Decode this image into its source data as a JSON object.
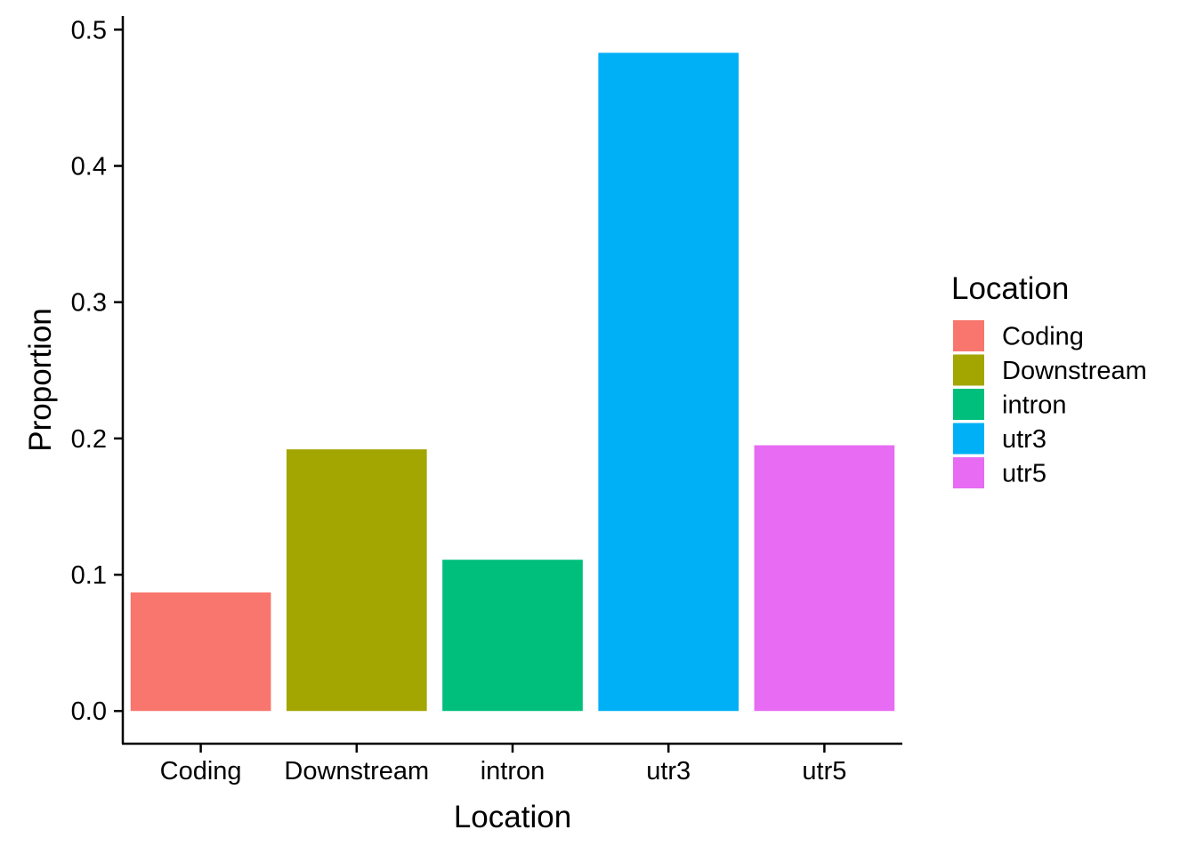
{
  "chart_data": {
    "type": "bar",
    "title": "",
    "xlabel": "Location",
    "ylabel": "Proportion",
    "categories": [
      "Coding",
      "Downstream",
      "intron",
      "utr3",
      "utr5"
    ],
    "values": [
      0.087,
      0.192,
      0.111,
      0.483,
      0.195
    ],
    "colors": [
      "#F8766D",
      "#A3A500",
      "#00BF7D",
      "#00B0F6",
      "#E76BF3"
    ],
    "ylim": [
      -0.024,
      0.51
    ],
    "yticks": [
      0.0,
      0.1,
      0.2,
      0.3,
      0.4,
      0.5
    ],
    "ytick_labels": [
      "0.0",
      "0.1",
      "0.2",
      "0.3",
      "0.4",
      "0.5"
    ],
    "grid": false,
    "legend": {
      "title": "Location",
      "placement": "right",
      "entries": [
        "Coding",
        "Downstream",
        "intron",
        "utr3",
        "utr5"
      ]
    }
  }
}
